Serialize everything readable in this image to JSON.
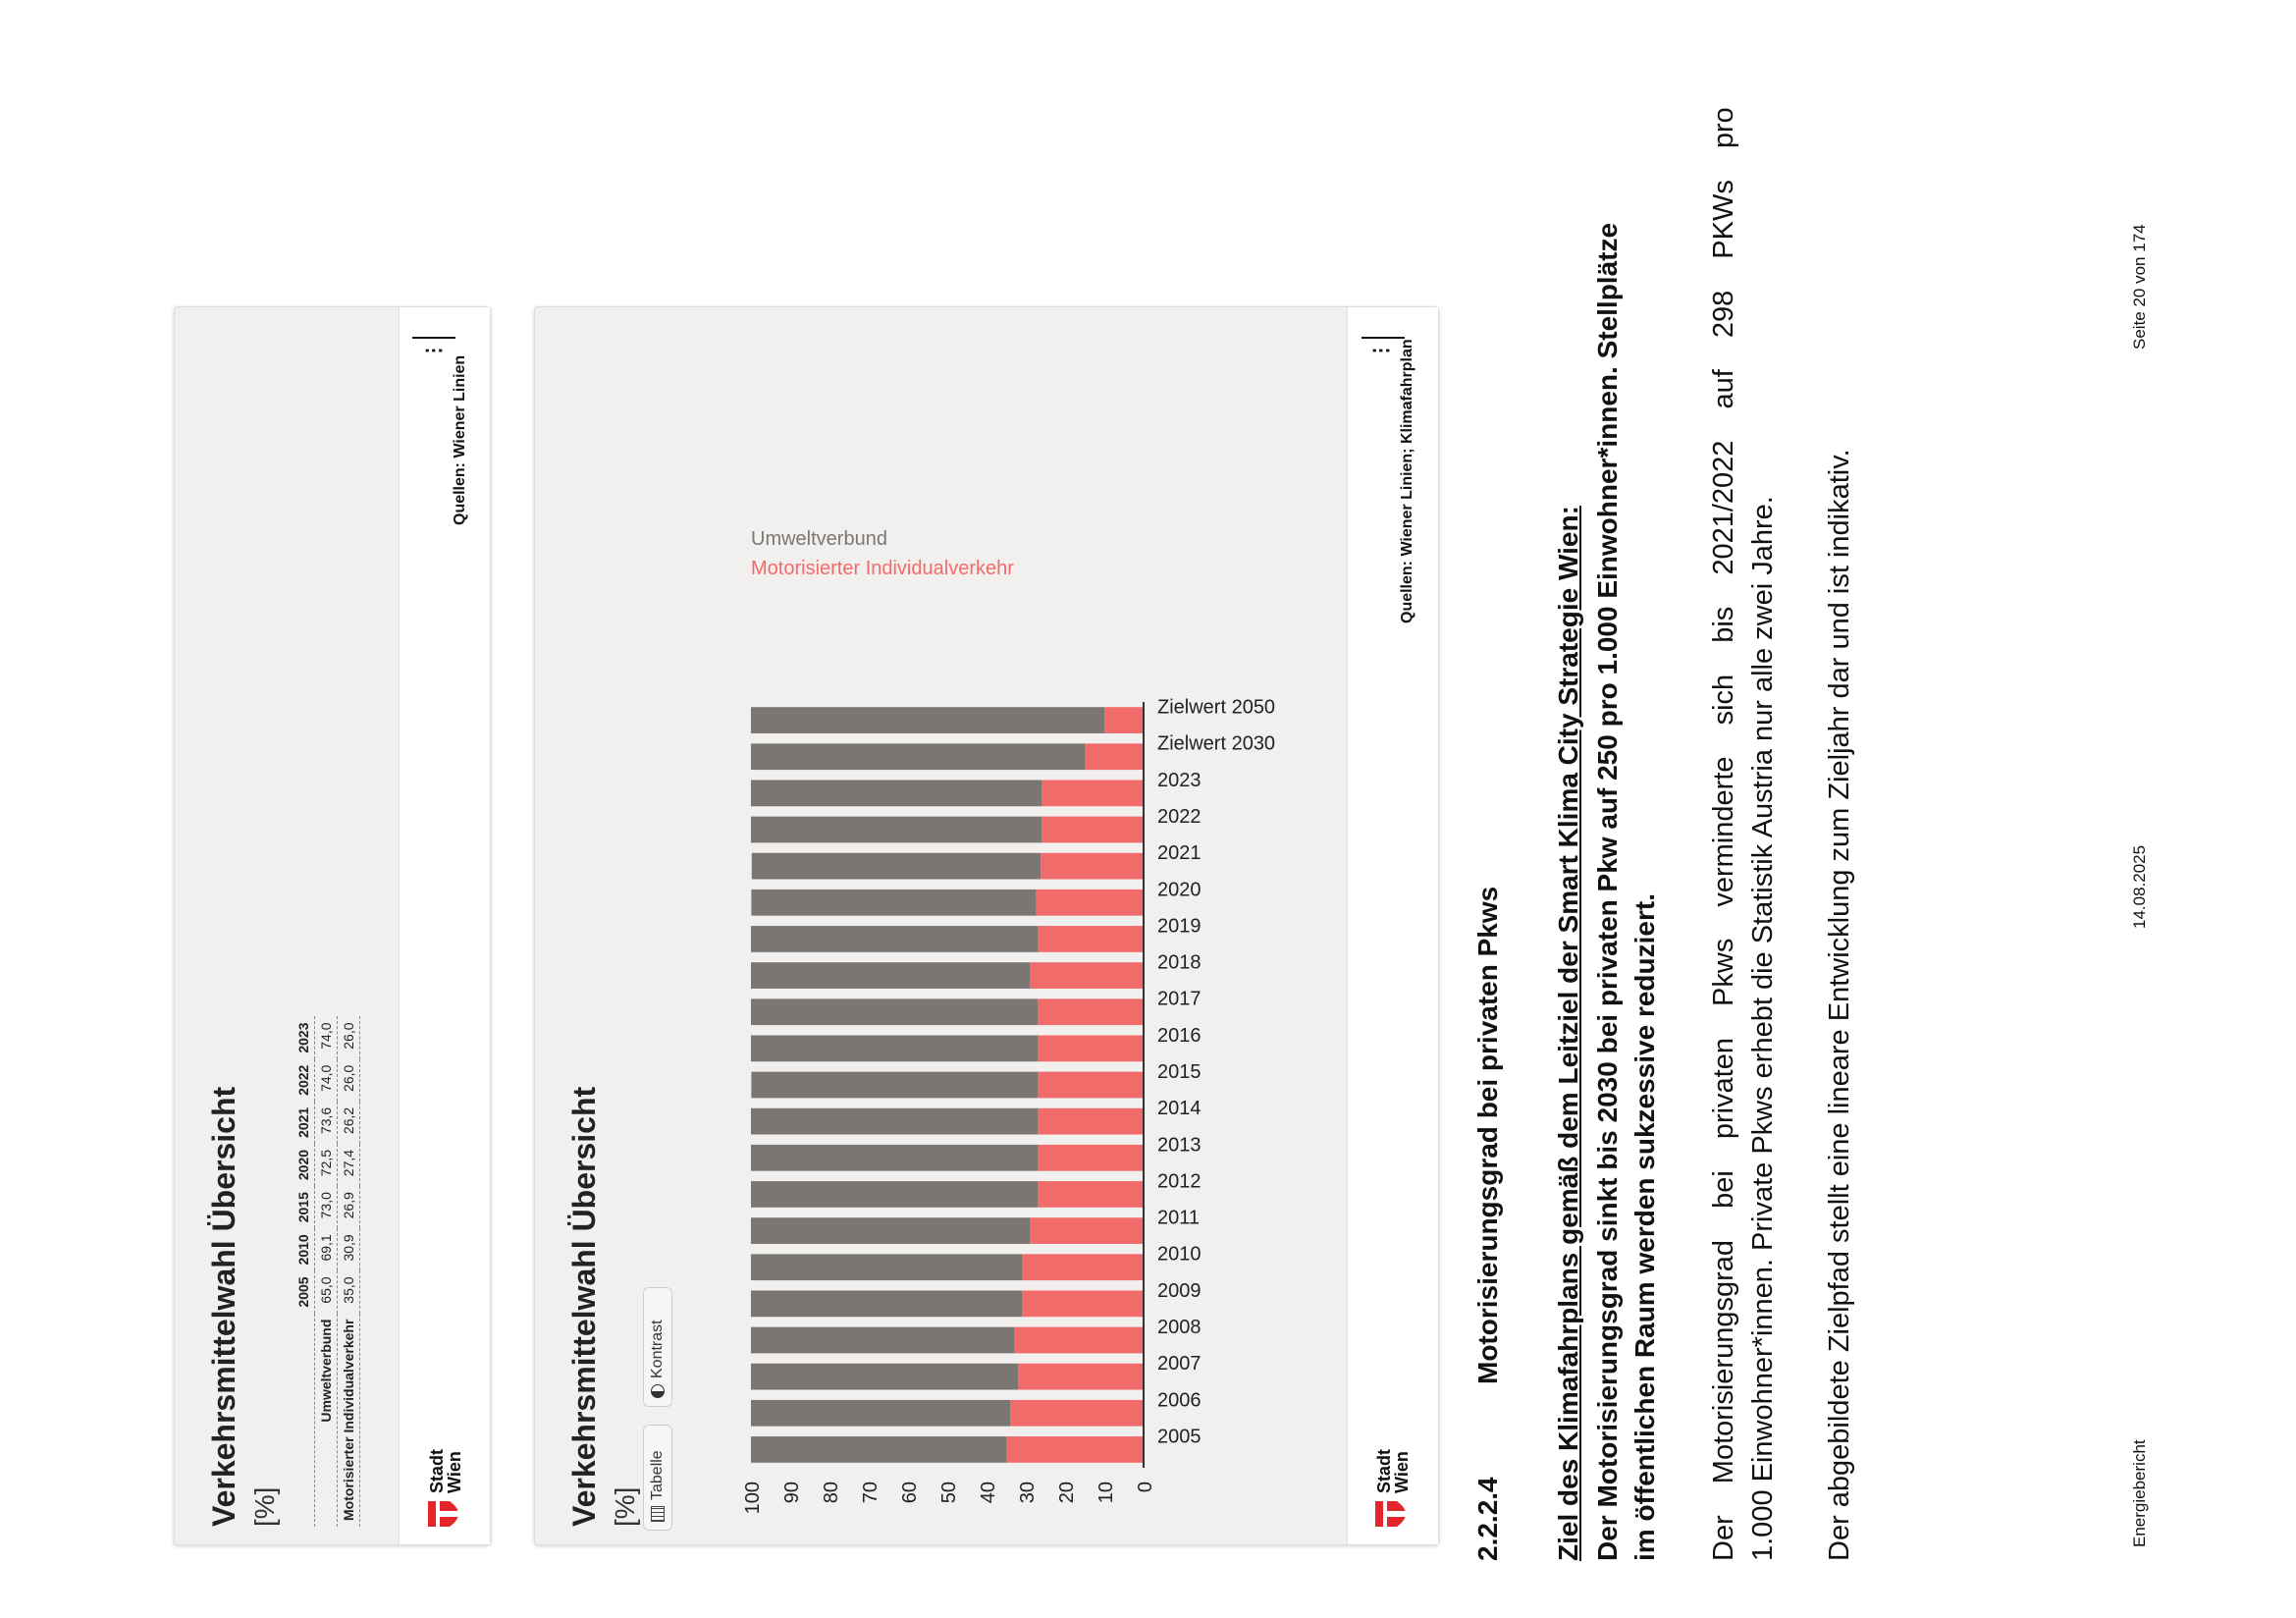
{
  "card1": {
    "title": "Verkehrsmittelwahl Übersicht",
    "unit": "[%]",
    "table": {
      "years": [
        "2005",
        "2010",
        "2015",
        "2020",
        "2021",
        "2022",
        "2023"
      ],
      "rows": [
        {
          "label": "Umweltverbund",
          "values": [
            "65,0",
            "69,1",
            "73,0",
            "72,5",
            "73,6",
            "74,0",
            "74,0"
          ]
        },
        {
          "label": "Motorisierter Individualverkehr",
          "values": [
            "35,0",
            "30,9",
            "26,9",
            "27,4",
            "26,2",
            "26,0",
            "26,0"
          ]
        }
      ]
    },
    "source": "Quellen: Wiener Linien",
    "logo": [
      "Stadt",
      "Wien"
    ]
  },
  "card2": {
    "title": "Verkehrsmittelwahl Übersicht",
    "unit": "[%]",
    "btn_table": "Tabelle",
    "btn_contrast": "Kontrast",
    "source": "Quellen: Wiener Linien; Klimafahrplan",
    "logo": [
      "Stadt",
      "Wien"
    ]
  },
  "chart_data": {
    "type": "bar",
    "stacked": true,
    "categories": [
      "2005",
      "2006",
      "2007",
      "2008",
      "2009",
      "2010",
      "2011",
      "2012",
      "2013",
      "2014",
      "2015",
      "2016",
      "2017",
      "2018",
      "2019",
      "2020",
      "2021",
      "2022",
      "2023",
      "Zielwert 2030",
      "Zielwert 2050"
    ],
    "series": [
      {
        "name": "Motorisierter Individualverkehr",
        "color": "#f26b6b",
        "values": [
          35,
          34,
          32,
          33,
          31,
          30.9,
          29,
          27,
          27,
          27,
          26.9,
          27,
          27,
          29,
          27,
          27.4,
          26.2,
          26,
          26,
          15,
          10
        ]
      },
      {
        "name": "Umweltverbund",
        "color": "#7a7673",
        "values": [
          65,
          66,
          68,
          67,
          69,
          69.1,
          71,
          73,
          73,
          73,
          73.0,
          73,
          73,
          71,
          73,
          72.5,
          73.6,
          74,
          74,
          85,
          90
        ]
      }
    ],
    "ylim": [
      0,
      100
    ],
    "yticks": [
      0,
      10,
      20,
      30,
      40,
      50,
      60,
      70,
      80,
      90,
      100
    ],
    "legend_position": "top-right",
    "grid": false
  },
  "text": {
    "section_num": "2.2.2.4",
    "section_title": "Motorisierungsgrad bei privaten Pkws",
    "goal_heading": "Ziel des Klimafahrplans gemäß dem Leitziel der Smart Klima City Strategie Wien:",
    "goal_line1": "Der Motorisierungsgrad sinkt bis 2030 bei privaten Pkw auf 250 pro 1.000 Einwohner*innen. Stellplätze",
    "goal_line2": "im öffentlichen Raum werden sukzessive reduziert.",
    "para1_line1": "Der Motorisierungsgrad bei privaten Pkws verminderte sich bis 2021/2022 auf 298 PKWs pro",
    "para1_line2": "1.000 Einwohner*innen. Private Pkws erhebt die Statistik Austria nur alle zwei Jahre.",
    "para2": "Der abgebildete Zielpfad stellt eine lineare Entwicklung zum Zieljahr dar und ist indikativ."
  },
  "footer": {
    "left": "Energiebericht",
    "center": "14.08.2025",
    "right": "Seite 20 von 174"
  },
  "colors": {
    "mit": "#f26b6b",
    "umw": "#7a7673",
    "logo_red": "#e3262b"
  }
}
